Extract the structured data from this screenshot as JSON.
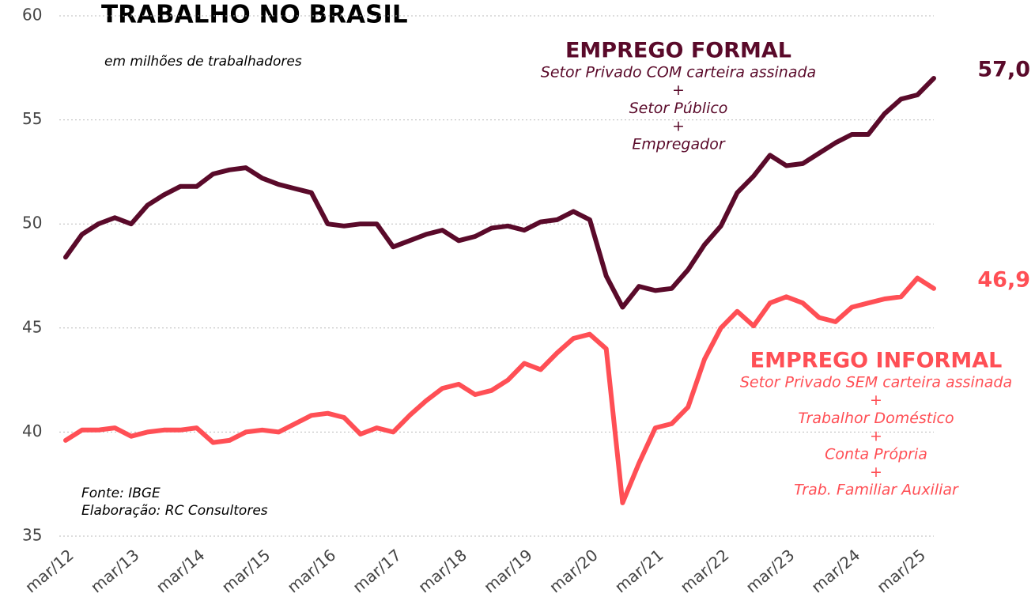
{
  "chart_data": {
    "type": "line",
    "title": "TRABALHO NO BRASIL",
    "subtitle": "em milhões de trabalhadores",
    "source": [
      "Fonte: IBGE",
      "Elaboração: RC Consultores"
    ],
    "categories": [
      "mar/12",
      null,
      null,
      null,
      "mar/13",
      null,
      null,
      null,
      "mar/14",
      null,
      null,
      null,
      "mar/15",
      null,
      null,
      null,
      "mar/16",
      null,
      null,
      null,
      "mar/17",
      null,
      null,
      null,
      "mar/18",
      null,
      null,
      null,
      "mar/19",
      null,
      null,
      null,
      "mar/20",
      null,
      null,
      null,
      "mar/21",
      null,
      null,
      null,
      "mar/22",
      null,
      null,
      null,
      "mar/23",
      null,
      null,
      null,
      "mar/24",
      null,
      null,
      null,
      "mar/25",
      null
    ],
    "series": [
      {
        "name": "EMPREGO FORMAL",
        "color": "#5a0a2a",
        "end_label": "57,0",
        "description": [
          "Setor Privado COM carteira assinada",
          "+",
          "Setor Público",
          "+",
          "Empregador"
        ],
        "values": [
          48.4,
          49.5,
          50.0,
          50.3,
          50.0,
          50.9,
          51.4,
          51.8,
          51.8,
          52.4,
          52.6,
          52.7,
          52.2,
          51.9,
          51.7,
          51.5,
          50.0,
          49.9,
          50.0,
          50.0,
          48.9,
          49.2,
          49.5,
          49.7,
          49.2,
          49.4,
          49.8,
          49.9,
          49.7,
          50.1,
          50.2,
          50.6,
          50.2,
          47.5,
          46.0,
          47.0,
          46.8,
          46.9,
          47.8,
          49.0,
          49.9,
          51.5,
          52.3,
          53.3,
          52.8,
          52.9,
          53.4,
          53.9,
          54.3,
          54.3,
          55.3,
          56.0,
          56.2,
          57.0
        ]
      },
      {
        "name": "EMPREGO INFORMAL",
        "color": "#ff4f55",
        "end_label": "46,9",
        "description": [
          "Setor Privado SEM carteira assinada",
          "+",
          "Trabalhor Doméstico",
          "+",
          "Conta Própria",
          "+",
          "Trab. Familiar Auxiliar"
        ],
        "values": [
          39.6,
          40.1,
          40.1,
          40.2,
          39.8,
          40.0,
          40.1,
          40.1,
          40.2,
          39.5,
          39.6,
          40.0,
          40.1,
          40.0,
          40.4,
          40.8,
          40.9,
          40.7,
          39.9,
          40.2,
          40.0,
          40.8,
          41.5,
          42.1,
          42.3,
          41.8,
          42.0,
          42.5,
          43.3,
          43.0,
          43.8,
          44.5,
          44.7,
          44.0,
          36.6,
          38.5,
          40.2,
          40.4,
          41.2,
          43.5,
          45.0,
          45.8,
          45.1,
          46.2,
          46.5,
          46.2,
          45.5,
          45.3,
          46.0,
          46.2,
          46.4,
          46.5,
          47.4,
          46.9
        ]
      }
    ],
    "ylim": [
      35,
      60
    ],
    "yticks": [
      35,
      40,
      45,
      50,
      55,
      60
    ],
    "grid": true
  }
}
